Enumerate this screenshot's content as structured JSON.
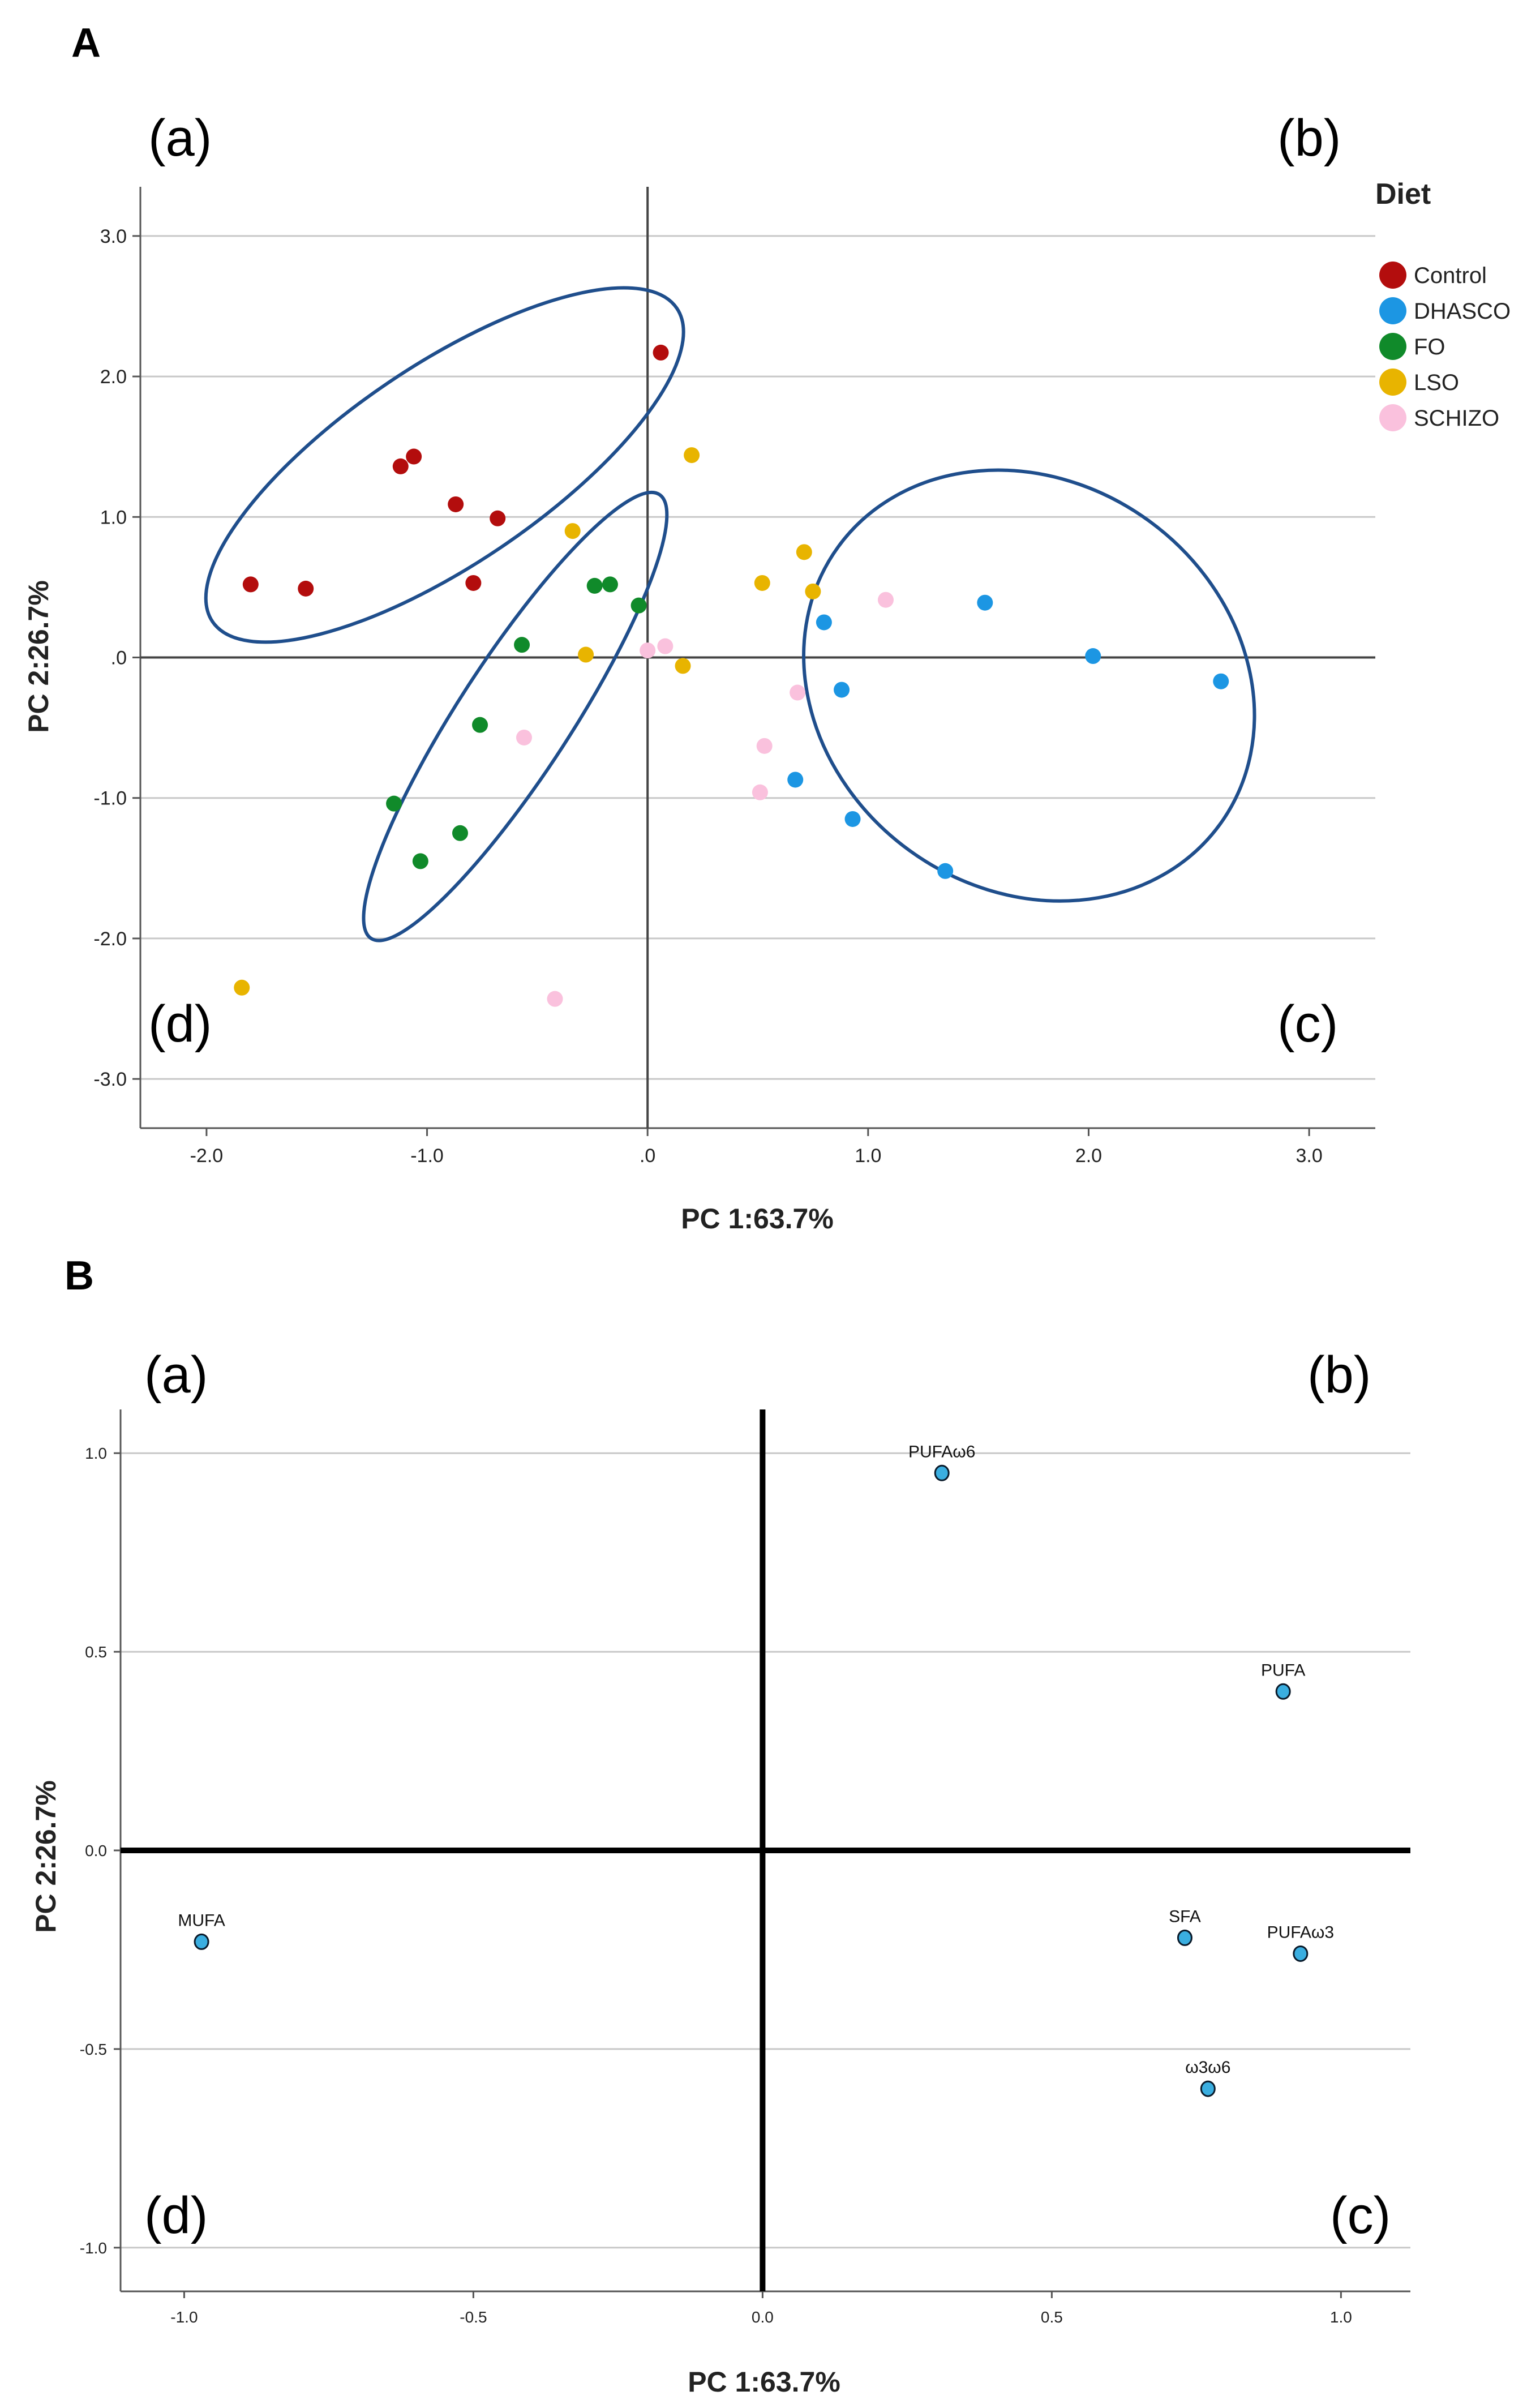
{
  "panel_labels": [
    "A",
    "B"
  ],
  "quadrant_labels": [
    "(a)",
    "(b)",
    "(c)",
    "(d)"
  ],
  "chart_data": [
    {
      "type": "scatter",
      "panel": "A",
      "xlabel": "PC 1:63.7%",
      "ylabel": "PC 2:26.7%",
      "xlim": [
        -2.3,
        3.3
      ],
      "ylim": [
        -3.35,
        3.35
      ],
      "xticks": [
        -2.0,
        -1.0,
        0.0,
        1.0,
        2.0,
        3.0
      ],
      "xtick_labels": [
        "-2.0",
        "-1.0",
        ".0",
        "1.0",
        "2.0",
        "3.0"
      ],
      "yticks": [
        3.0,
        2.0,
        1.0,
        0.0,
        -1.0,
        -2.0,
        -3.0
      ],
      "ytick_labels": [
        "3.0",
        "2.0",
        "1.0",
        ".0",
        "-1.0",
        "-2.0",
        "-3.0"
      ],
      "grid": "horizontal",
      "legend_title": "Diet",
      "legend_position": "right",
      "series": [
        {
          "name": "Control",
          "color": "#b30d0d",
          "points": [
            [
              -1.8,
              0.52
            ],
            [
              -1.55,
              0.49
            ],
            [
              -1.12,
              1.36
            ],
            [
              -1.06,
              1.43
            ],
            [
              -0.87,
              1.09
            ],
            [
              -0.68,
              0.99
            ],
            [
              -0.79,
              0.53
            ],
            [
              0.06,
              2.17
            ]
          ]
        },
        {
          "name": "DHASCO",
          "color": "#1c96e3",
          "points": [
            [
              1.53,
              0.39
            ],
            [
              2.02,
              0.01
            ],
            [
              2.6,
              -0.17
            ],
            [
              0.8,
              0.25
            ],
            [
              0.88,
              -0.23
            ],
            [
              0.67,
              -0.87
            ],
            [
              0.93,
              -1.15
            ],
            [
              1.35,
              -1.52
            ]
          ]
        },
        {
          "name": "FO",
          "color": "#108a2a",
          "points": [
            [
              -0.24,
              0.51
            ],
            [
              -0.17,
              0.52
            ],
            [
              -0.04,
              0.37
            ],
            [
              -0.57,
              0.09
            ],
            [
              -0.76,
              -0.48
            ],
            [
              -1.15,
              -1.04
            ],
            [
              -0.85,
              -1.25
            ],
            [
              -1.03,
              -1.45
            ]
          ]
        },
        {
          "name": "LSO",
          "color": "#e8b400",
          "points": [
            [
              0.2,
              1.44
            ],
            [
              -0.34,
              0.9
            ],
            [
              0.71,
              0.75
            ],
            [
              0.75,
              0.47
            ],
            [
              0.52,
              0.53
            ],
            [
              -0.28,
              0.02
            ],
            [
              0.16,
              -0.06
            ],
            [
              -1.84,
              -2.35
            ]
          ]
        },
        {
          "name": "SCHIZO",
          "color": "#fac1dd",
          "points": [
            [
              1.08,
              0.41
            ],
            [
              0.08,
              0.08
            ],
            [
              0.0,
              0.05
            ],
            [
              0.68,
              -0.25
            ],
            [
              -0.56,
              -0.57
            ],
            [
              0.53,
              -0.63
            ],
            [
              0.51,
              -0.96
            ],
            [
              -0.42,
              -2.43
            ]
          ]
        }
      ],
      "ellipses": [
        {
          "center": [
            -0.92,
            1.37
          ],
          "semi_axes": [
            1.27,
            0.71
          ],
          "angle_deg": 34
        },
        {
          "center": [
            -0.6,
            -0.42
          ],
          "semi_axes": [
            1.2,
            0.4
          ],
          "angle_deg": 57
        },
        {
          "center": [
            1.73,
            -0.2
          ],
          "semi_axes": [
            1.07,
            1.45
          ],
          "angle_deg": -36
        }
      ]
    },
    {
      "type": "scatter",
      "panel": "B",
      "xlabel": "PC 1:63.7%",
      "ylabel": "PC 2:26.7%",
      "xlim": [
        -1.11,
        1.12
      ],
      "ylim": [
        -1.11,
        1.11
      ],
      "xticks": [
        -1.0,
        -0.5,
        0.0,
        0.5,
        1.0
      ],
      "xtick_labels": [
        "-1.0",
        "-0.5",
        "0.0",
        "0.5",
        "1.0"
      ],
      "yticks": [
        1.0,
        0.5,
        0.0,
        -0.5,
        -1.0
      ],
      "ytick_labels": [
        "1.0",
        "0.5",
        "0.0",
        "-0.5",
        "-1.0"
      ],
      "grid": "horizontal",
      "point_color": "#3aaee0",
      "points": [
        {
          "label": "PUFAω6",
          "x": 0.31,
          "y": 0.95
        },
        {
          "label": "PUFA",
          "x": 0.9,
          "y": 0.4
        },
        {
          "label": "MUFA",
          "x": -0.97,
          "y": -0.23
        },
        {
          "label": "SFA",
          "x": 0.73,
          "y": -0.22
        },
        {
          "label": "PUFAω3",
          "x": 0.93,
          "y": -0.26
        },
        {
          "label": "ω3ω6",
          "x": 0.77,
          "y": -0.6
        }
      ]
    }
  ]
}
